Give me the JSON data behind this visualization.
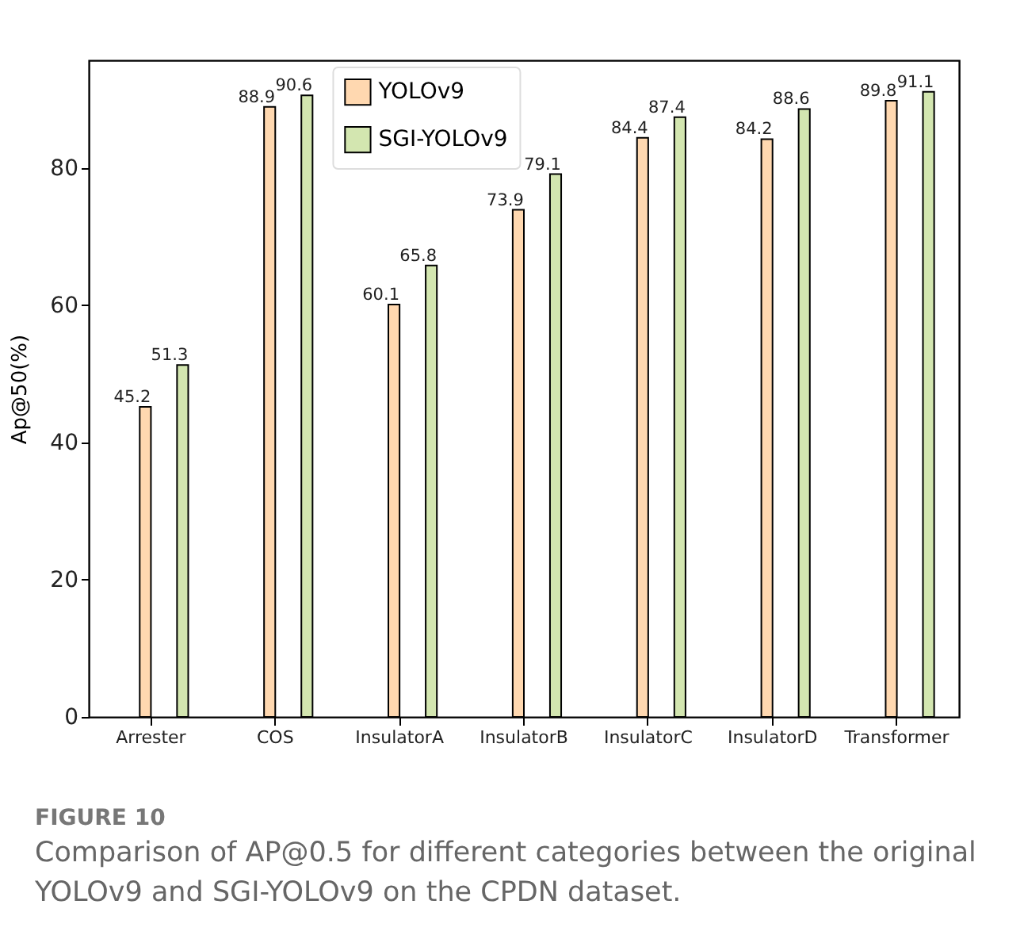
{
  "chart_data": {
    "type": "bar",
    "ylabel": "Ap@50(%)",
    "categories": [
      "Arrester",
      "COS",
      "InsulatorA",
      "InsulatorB",
      "InsulatorC",
      "InsulatorD",
      "Transformer"
    ],
    "series": [
      {
        "name": "YOLOv9",
        "color": "#ffd8b0",
        "values": [
          45.2,
          88.9,
          60.1,
          73.9,
          84.4,
          84.2,
          89.8
        ]
      },
      {
        "name": "SGI-YOLOv9",
        "color": "#d3e6b0",
        "values": [
          51.3,
          90.6,
          65.8,
          79.1,
          87.4,
          88.6,
          91.1
        ]
      }
    ],
    "ylim": [
      0,
      95.7
    ],
    "yticks": [
      0,
      20,
      40,
      60,
      80
    ],
    "data_labels": true,
    "legend": "top",
    "grid": false,
    "annotations": [
      "FIGURE 10",
      "Comparison of AP@0.5 for different categories between the original YOLOv9 and SGI-YOLOv9 on the CPDN dataset."
    ]
  }
}
